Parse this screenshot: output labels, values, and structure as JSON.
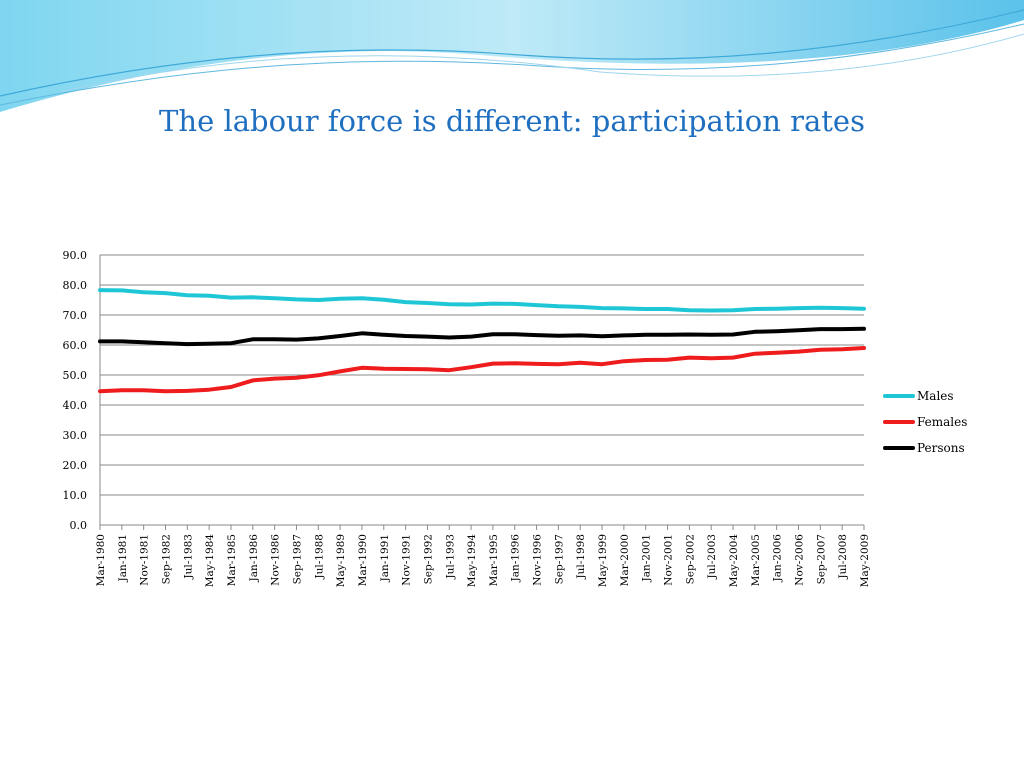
{
  "slide": {
    "title": "The labour force is different: participation rates"
  },
  "chart_data": {
    "type": "line",
    "title": "",
    "xlabel": "",
    "ylabel": "",
    "ylim": [
      0,
      90
    ],
    "yticks": [
      "0.0",
      "10.0",
      "20.0",
      "30.0",
      "40.0",
      "50.0",
      "60.0",
      "70.0",
      "80.0",
      "90.0"
    ],
    "grid": true,
    "legend_position": "right",
    "x_tick_labels": [
      "Mar-1980",
      "Jan-1981",
      "Nov-1981",
      "Sep-1982",
      "Jul-1983",
      "May-1984",
      "Mar-1985",
      "Jan-1986",
      "Nov-1986",
      "Sep-1987",
      "Jul-1988",
      "May-1989",
      "Mar-1990",
      "Jan-1991",
      "Nov-1991",
      "Sep-1992",
      "Jul-1993",
      "May-1994",
      "Mar-1995",
      "Jan-1996",
      "Nov-1996",
      "Sep-1997",
      "Jul-1998",
      "May-1999",
      "Mar-2000",
      "Jan-2001",
      "Nov-2001",
      "Sep-2002",
      "Jul-2003",
      "May-2004",
      "Mar-2005",
      "Jan-2006",
      "Nov-2006",
      "Sep-2007",
      "Jul-2008",
      "May-2009"
    ],
    "series": [
      {
        "name": "Males",
        "color": "#1fc7d6",
        "values": [
          78.3,
          78.2,
          77.6,
          77.3,
          76.6,
          76.4,
          75.8,
          75.9,
          75.6,
          75.2,
          75.0,
          75.4,
          75.6,
          75.1,
          74.3,
          74.0,
          73.6,
          73.5,
          73.8,
          73.7,
          73.3,
          72.9,
          72.7,
          72.3,
          72.2,
          72.0,
          72.0,
          71.6,
          71.5,
          71.6,
          72.0,
          72.1,
          72.3,
          72.4,
          72.3,
          72.1
        ]
      },
      {
        "name": "Females",
        "color": "#ee1c1c",
        "values": [
          44.6,
          44.9,
          44.9,
          44.6,
          44.7,
          45.1,
          46.0,
          48.2,
          48.8,
          49.1,
          49.9,
          51.2,
          52.4,
          52.1,
          52.0,
          51.9,
          51.6,
          52.6,
          53.8,
          53.9,
          53.7,
          53.6,
          54.1,
          53.6,
          54.6,
          55.0,
          55.1,
          55.8,
          55.6,
          55.8,
          57.1,
          57.4,
          57.8,
          58.4,
          58.6,
          59.0
        ]
      },
      {
        "name": "Persons",
        "color": "#000000",
        "values": [
          61.2,
          61.2,
          60.9,
          60.6,
          60.3,
          60.4,
          60.6,
          61.9,
          61.9,
          61.8,
          62.2,
          63.0,
          63.9,
          63.4,
          63.0,
          62.8,
          62.5,
          62.8,
          63.6,
          63.6,
          63.3,
          63.1,
          63.2,
          62.9,
          63.2,
          63.4,
          63.4,
          63.5,
          63.4,
          63.5,
          64.4,
          64.6,
          64.9,
          65.3,
          65.3,
          65.4
        ]
      }
    ]
  }
}
